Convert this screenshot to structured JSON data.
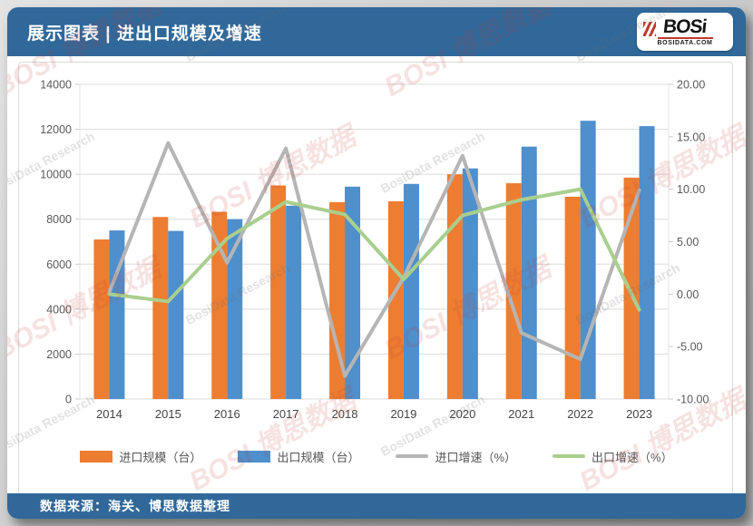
{
  "header": {
    "title": "展示图表 | 进出口规模及增速",
    "logo": {
      "text": "BOSi",
      "subtext": "BOSIDATA.COM"
    }
  },
  "footer": {
    "source": "数据来源：海关、博思数据整理"
  },
  "watermark": {
    "red_text": "BOSI 博思数据",
    "gray_text": "BosiData Research"
  },
  "colors": {
    "header_bar": "#30689A",
    "import_bar": "#ED7D31",
    "export_bar": "#4E8FCC",
    "import_line": "#B5B5B5",
    "export_line": "#A9CF8E",
    "grid": "#DCDCDC",
    "axis_text": "#595959"
  },
  "chart_data": {
    "type": "combo-bar-line",
    "title": "进出口规模及增速",
    "categories": [
      "2014",
      "2015",
      "2016",
      "2017",
      "2018",
      "2019",
      "2020",
      "2021",
      "2022",
      "2023"
    ],
    "bar_series": [
      {
        "name": "进口规模（台）",
        "color": "#ED7D31",
        "axis": "left",
        "values": [
          7100,
          8100,
          8330,
          9500,
          8760,
          8800,
          10000,
          9600,
          9000,
          9850
        ]
      },
      {
        "name": "出口规模（台）",
        "color": "#4E8FCC",
        "axis": "left",
        "values": [
          7500,
          7480,
          8000,
          8600,
          9450,
          9570,
          10260,
          11230,
          12380,
          12140
        ]
      }
    ],
    "line_series": [
      {
        "name": "进口增速（%）",
        "color": "#B5B5B5",
        "axis": "right",
        "values": [
          0.2,
          14.4,
          3.0,
          13.9,
          -7.8,
          1.6,
          13.2,
          -3.7,
          -6.2,
          9.9
        ]
      },
      {
        "name": "出口增速（%）",
        "color": "#A9CF8E",
        "axis": "right",
        "values": [
          0.0,
          -0.7,
          5.3,
          8.8,
          7.6,
          1.4,
          7.5,
          9.0,
          10.0,
          -1.5
        ]
      }
    ],
    "left_axis": {
      "min": 0,
      "max": 14000,
      "step": 2000,
      "labels": [
        "0",
        "2000",
        "4000",
        "6000",
        "8000",
        "10000",
        "12000",
        "14000"
      ]
    },
    "right_axis": {
      "min": -10,
      "max": 20,
      "step": 5,
      "labels": [
        "-10.00",
        "-5.00",
        "0.00",
        "5.00",
        "10.00",
        "15.00",
        "20.00"
      ]
    },
    "grid": true,
    "legend_position": "bottom"
  }
}
